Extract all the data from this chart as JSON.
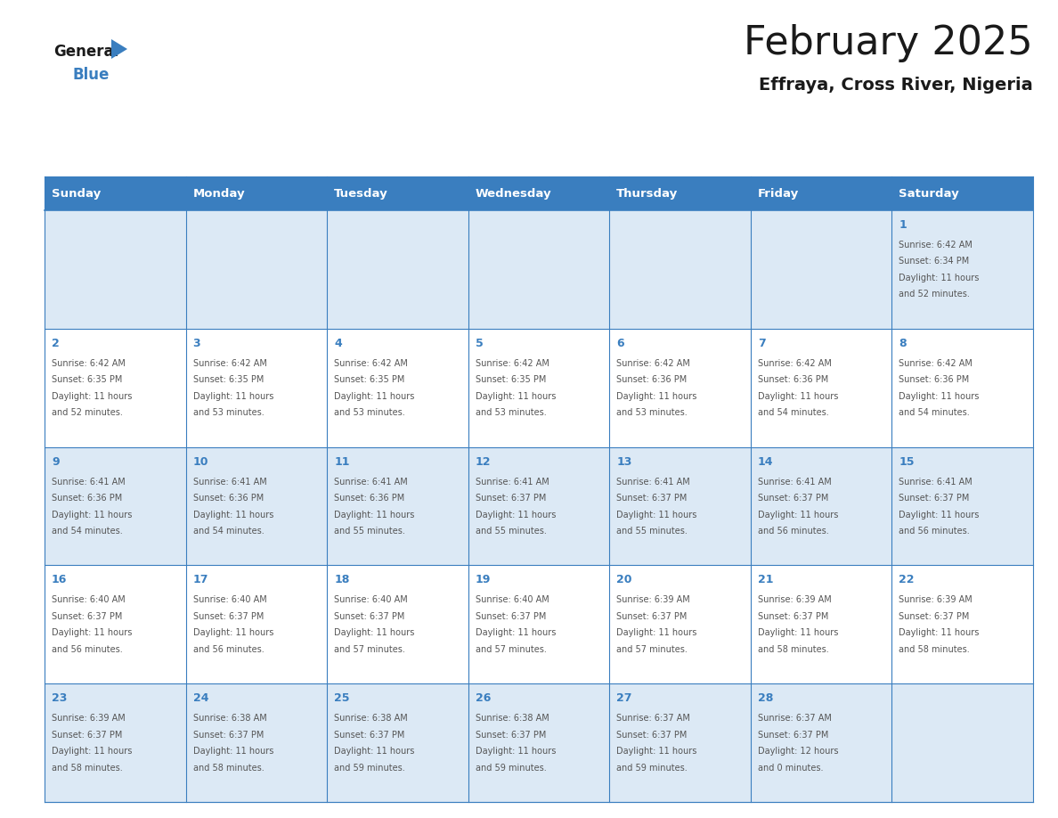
{
  "title": "February 2025",
  "subtitle": "Effraya, Cross River, Nigeria",
  "header_color": "#3a7ebf",
  "header_text_color": "#ffffff",
  "row_bg_even": "#dce9f5",
  "row_bg_odd": "#ffffff",
  "day_number_color": "#3a7ebf",
  "info_text_color": "#555555",
  "border_color": "#3a7ebf",
  "weekdays": [
    "Sunday",
    "Monday",
    "Tuesday",
    "Wednesday",
    "Thursday",
    "Friday",
    "Saturday"
  ],
  "weeks": [
    [
      {
        "day": null,
        "sunrise": null,
        "sunset": null,
        "daylight": null
      },
      {
        "day": null,
        "sunrise": null,
        "sunset": null,
        "daylight": null
      },
      {
        "day": null,
        "sunrise": null,
        "sunset": null,
        "daylight": null
      },
      {
        "day": null,
        "sunrise": null,
        "sunset": null,
        "daylight": null
      },
      {
        "day": null,
        "sunrise": null,
        "sunset": null,
        "daylight": null
      },
      {
        "day": null,
        "sunrise": null,
        "sunset": null,
        "daylight": null
      },
      {
        "day": 1,
        "sunrise": "6:42 AM",
        "sunset": "6:34 PM",
        "daylight": "11 hours\nand 52 minutes."
      }
    ],
    [
      {
        "day": 2,
        "sunrise": "6:42 AM",
        "sunset": "6:35 PM",
        "daylight": "11 hours\nand 52 minutes."
      },
      {
        "day": 3,
        "sunrise": "6:42 AM",
        "sunset": "6:35 PM",
        "daylight": "11 hours\nand 53 minutes."
      },
      {
        "day": 4,
        "sunrise": "6:42 AM",
        "sunset": "6:35 PM",
        "daylight": "11 hours\nand 53 minutes."
      },
      {
        "day": 5,
        "sunrise": "6:42 AM",
        "sunset": "6:35 PM",
        "daylight": "11 hours\nand 53 minutes."
      },
      {
        "day": 6,
        "sunrise": "6:42 AM",
        "sunset": "6:36 PM",
        "daylight": "11 hours\nand 53 minutes."
      },
      {
        "day": 7,
        "sunrise": "6:42 AM",
        "sunset": "6:36 PM",
        "daylight": "11 hours\nand 54 minutes."
      },
      {
        "day": 8,
        "sunrise": "6:42 AM",
        "sunset": "6:36 PM",
        "daylight": "11 hours\nand 54 minutes."
      }
    ],
    [
      {
        "day": 9,
        "sunrise": "6:41 AM",
        "sunset": "6:36 PM",
        "daylight": "11 hours\nand 54 minutes."
      },
      {
        "day": 10,
        "sunrise": "6:41 AM",
        "sunset": "6:36 PM",
        "daylight": "11 hours\nand 54 minutes."
      },
      {
        "day": 11,
        "sunrise": "6:41 AM",
        "sunset": "6:36 PM",
        "daylight": "11 hours\nand 55 minutes."
      },
      {
        "day": 12,
        "sunrise": "6:41 AM",
        "sunset": "6:37 PM",
        "daylight": "11 hours\nand 55 minutes."
      },
      {
        "day": 13,
        "sunrise": "6:41 AM",
        "sunset": "6:37 PM",
        "daylight": "11 hours\nand 55 minutes."
      },
      {
        "day": 14,
        "sunrise": "6:41 AM",
        "sunset": "6:37 PM",
        "daylight": "11 hours\nand 56 minutes."
      },
      {
        "day": 15,
        "sunrise": "6:41 AM",
        "sunset": "6:37 PM",
        "daylight": "11 hours\nand 56 minutes."
      }
    ],
    [
      {
        "day": 16,
        "sunrise": "6:40 AM",
        "sunset": "6:37 PM",
        "daylight": "11 hours\nand 56 minutes."
      },
      {
        "day": 17,
        "sunrise": "6:40 AM",
        "sunset": "6:37 PM",
        "daylight": "11 hours\nand 56 minutes."
      },
      {
        "day": 18,
        "sunrise": "6:40 AM",
        "sunset": "6:37 PM",
        "daylight": "11 hours\nand 57 minutes."
      },
      {
        "day": 19,
        "sunrise": "6:40 AM",
        "sunset": "6:37 PM",
        "daylight": "11 hours\nand 57 minutes."
      },
      {
        "day": 20,
        "sunrise": "6:39 AM",
        "sunset": "6:37 PM",
        "daylight": "11 hours\nand 57 minutes."
      },
      {
        "day": 21,
        "sunrise": "6:39 AM",
        "sunset": "6:37 PM",
        "daylight": "11 hours\nand 58 minutes."
      },
      {
        "day": 22,
        "sunrise": "6:39 AM",
        "sunset": "6:37 PM",
        "daylight": "11 hours\nand 58 minutes."
      }
    ],
    [
      {
        "day": 23,
        "sunrise": "6:39 AM",
        "sunset": "6:37 PM",
        "daylight": "11 hours\nand 58 minutes."
      },
      {
        "day": 24,
        "sunrise": "6:38 AM",
        "sunset": "6:37 PM",
        "daylight": "11 hours\nand 58 minutes."
      },
      {
        "day": 25,
        "sunrise": "6:38 AM",
        "sunset": "6:37 PM",
        "daylight": "11 hours\nand 59 minutes."
      },
      {
        "day": 26,
        "sunrise": "6:38 AM",
        "sunset": "6:37 PM",
        "daylight": "11 hours\nand 59 minutes."
      },
      {
        "day": 27,
        "sunrise": "6:37 AM",
        "sunset": "6:37 PM",
        "daylight": "11 hours\nand 59 minutes."
      },
      {
        "day": 28,
        "sunrise": "6:37 AM",
        "sunset": "6:37 PM",
        "daylight": "12 hours\nand 0 minutes."
      },
      {
        "day": null,
        "sunrise": null,
        "sunset": null,
        "daylight": null
      }
    ]
  ]
}
